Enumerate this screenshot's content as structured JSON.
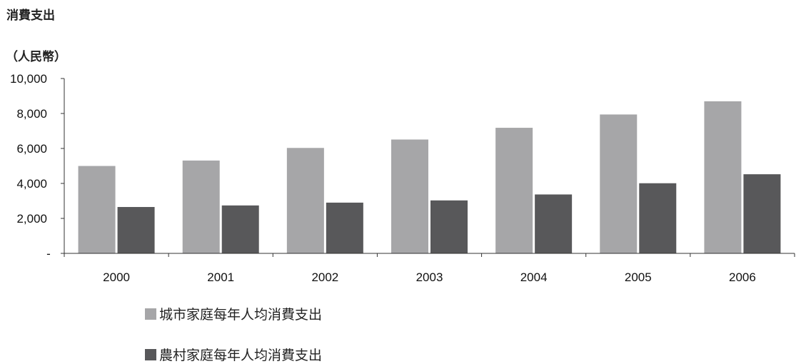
{
  "title": "消費支出",
  "chart_data": {
    "type": "bar",
    "title": "消費支出",
    "ylabel": "（人民幣）",
    "xlabel": "",
    "ylim": [
      0,
      10000
    ],
    "y_ticks": [
      "-",
      "2,000",
      "4,000",
      "6,000",
      "8,000",
      "10,000"
    ],
    "categories": [
      "2000",
      "2001",
      "2002",
      "2003",
      "2004",
      "2005",
      "2006"
    ],
    "series": [
      {
        "name": "城市家庭每年人均消費支出",
        "color": "#a6a6a8",
        "values": [
          4998,
          5309,
          6030,
          6511,
          7182,
          7943,
          8697
        ]
      },
      {
        "name": "農村家庭每年人均消費支出",
        "color": "#58585a",
        "values": [
          2652,
          2741,
          2902,
          3029,
          3369,
          4011,
          4525
        ]
      }
    ],
    "legend_position": "bottom",
    "grid": false
  }
}
